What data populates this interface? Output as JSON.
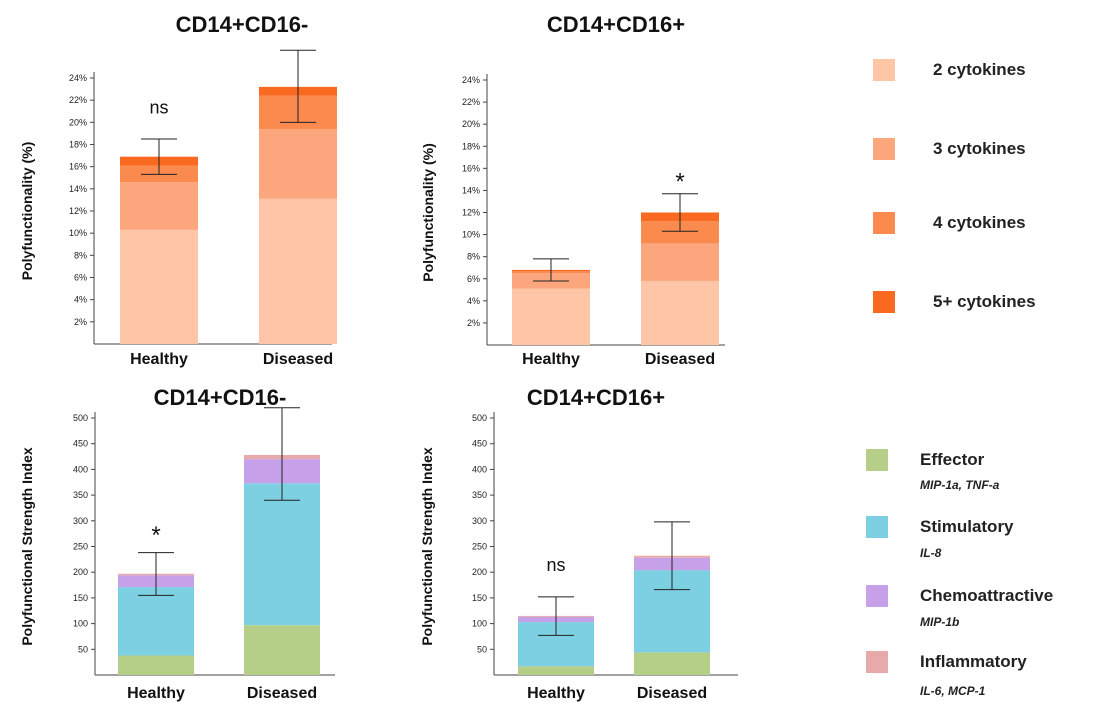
{
  "chart_data": [
    {
      "type": "bar",
      "stacked": true,
      "title": "CD14+CD16-",
      "ylabel": "Polyfunctionality (%)",
      "xlabel": "",
      "ylim": [
        0,
        24
      ],
      "yticks": [
        2,
        4,
        6,
        8,
        10,
        12,
        14,
        16,
        18,
        20,
        22,
        24
      ],
      "ytick_labels": [
        "2%",
        "4%",
        "6%",
        "8%",
        "10%",
        "12%",
        "14%",
        "16%",
        "18%",
        "20%",
        "22%",
        "24%"
      ],
      "categories": [
        "Healthy",
        "Diseased"
      ],
      "series": [
        {
          "name": "2 cytokines",
          "values": [
            10.3,
            13.1
          ]
        },
        {
          "name": "3 cytokines",
          "values": [
            4.3,
            6.3
          ]
        },
        {
          "name": "4 cytokines",
          "values": [
            1.5,
            3.0
          ]
        },
        {
          "name": "5+ cytokines",
          "values": [
            0.8,
            0.8
          ]
        }
      ],
      "error_bars": [
        {
          "low": 15.3,
          "high": 18.5
        },
        {
          "low": 20.0,
          "high": 26.5
        }
      ],
      "annotations": [
        {
          "category": "Healthy",
          "text": "ns",
          "y": 20.8
        }
      ]
    },
    {
      "type": "bar",
      "stacked": true,
      "title": "CD14+CD16+",
      "ylabel": "Polyfunctionality (%)",
      "xlabel": "",
      "ylim": [
        0,
        24
      ],
      "yticks": [
        2,
        4,
        6,
        8,
        10,
        12,
        14,
        16,
        18,
        20,
        22,
        24
      ],
      "ytick_labels": [
        "2%",
        "4%",
        "6%",
        "8%",
        "10%",
        "12%",
        "14%",
        "16%",
        "18%",
        "20%",
        "22%",
        "24%"
      ],
      "categories": [
        "Healthy",
        "Diseased"
      ],
      "series": [
        {
          "name": "2 cytokines",
          "values": [
            5.1,
            5.8
          ]
        },
        {
          "name": "3 cytokines",
          "values": [
            1.4,
            3.4
          ]
        },
        {
          "name": "4 cytokines",
          "values": [
            0.2,
            2.0
          ]
        },
        {
          "name": "5+ cytokines",
          "values": [
            0.1,
            0.8
          ]
        }
      ],
      "error_bars": [
        {
          "low": 5.8,
          "high": 7.8
        },
        {
          "low": 10.3,
          "high": 13.7
        }
      ],
      "annotations": [
        {
          "category": "Diseased",
          "text": "*",
          "y": 14.8
        }
      ]
    },
    {
      "type": "bar",
      "stacked": true,
      "title": "CD14+CD16-",
      "ylabel": "Polyfunctional Strength Index",
      "xlabel": "",
      "ylim": [
        0,
        500
      ],
      "yticks": [
        50,
        100,
        150,
        200,
        250,
        300,
        350,
        400,
        450,
        500
      ],
      "ytick_labels": [
        "50",
        "100",
        "150",
        "200",
        "250",
        "300",
        "350",
        "400",
        "450",
        "500"
      ],
      "categories": [
        "Healthy",
        "Diseased"
      ],
      "series": [
        {
          "name": "Effector",
          "values": [
            38,
            97
          ]
        },
        {
          "name": "Stimulatory",
          "values": [
            133,
            276
          ]
        },
        {
          "name": "Chemoattractive",
          "values": [
            23,
            47
          ]
        },
        {
          "name": "Inflammatory",
          "values": [
            3,
            8
          ]
        }
      ],
      "error_bars": [
        {
          "low": 155,
          "high": 238
        },
        {
          "low": 340,
          "high": 520
        }
      ],
      "annotations": [
        {
          "category": "Healthy",
          "text": "*",
          "y": 272
        }
      ]
    },
    {
      "type": "bar",
      "stacked": true,
      "title": "CD14+CD16+",
      "ylabel": "Polyfunctional Strength Index",
      "xlabel": "",
      "ylim": [
        0,
        500
      ],
      "yticks": [
        50,
        100,
        150,
        200,
        250,
        300,
        350,
        400,
        450,
        500
      ],
      "ytick_labels": [
        "50",
        "100",
        "150",
        "200",
        "250",
        "300",
        "350",
        "400",
        "450",
        "500"
      ],
      "categories": [
        "Healthy",
        "Diseased"
      ],
      "series": [
        {
          "name": "Effector",
          "values": [
            17,
            44
          ]
        },
        {
          "name": "Stimulatory",
          "values": [
            86,
            160
          ]
        },
        {
          "name": "Chemoattractive",
          "values": [
            10,
            24
          ]
        },
        {
          "name": "Inflammatory",
          "values": [
            2,
            4
          ]
        }
      ],
      "error_bars": [
        {
          "low": 77,
          "high": 152
        },
        {
          "low": 166,
          "high": 298
        }
      ],
      "annotations": [
        {
          "category": "Healthy",
          "text": "ns",
          "y": 202
        }
      ]
    }
  ],
  "colors": {
    "2 cytokines": "#fec5a7",
    "3 cytokines": "#fca67d",
    "4 cytokines": "#fb8a4f",
    "5+ cytokines": "#f96a20",
    "Effector": "#b5cf88",
    "Stimulatory": "#7cd0e2",
    "Chemoattractive": "#c6a1ea",
    "Inflammatory": "#e7a9aa",
    "axis": "#444444"
  },
  "legend_top": [
    {
      "name": "2 cytokines",
      "label": "2 cytokines"
    },
    {
      "name": "3 cytokines",
      "label": "3 cytokines"
    },
    {
      "name": "4 cytokines",
      "label": "4 cytokines"
    },
    {
      "name": "5+ cytokines",
      "label": "5+ cytokines"
    }
  ],
  "legend_bottom": [
    {
      "name": "Effector",
      "label": "Effector",
      "sub": "MIP-1a, TNF-a"
    },
    {
      "name": "Stimulatory",
      "label": "Stimulatory",
      "sub": "IL-8"
    },
    {
      "name": "Chemoattractive",
      "label": "Chemoattractive",
      "sub": "MIP-1b"
    },
    {
      "name": "Inflammatory",
      "label": "Inflammatory",
      "sub": "IL-6, MCP-1"
    }
  ]
}
